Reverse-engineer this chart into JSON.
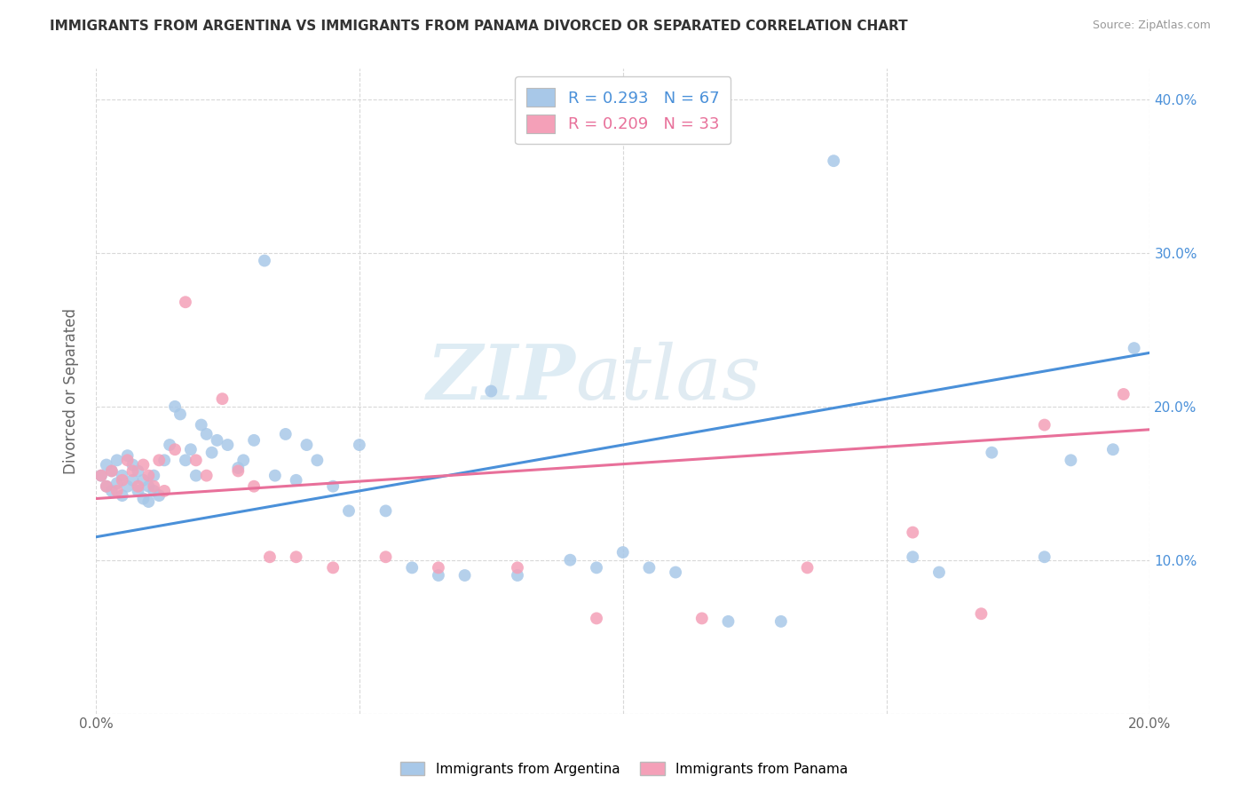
{
  "title": "IMMIGRANTS FROM ARGENTINA VS IMMIGRANTS FROM PANAMA DIVORCED OR SEPARATED CORRELATION CHART",
  "source": "Source: ZipAtlas.com",
  "ylabel": "Divorced or Separated",
  "xlim": [
    0.0,
    0.2
  ],
  "ylim": [
    0.0,
    0.42
  ],
  "xticks": [
    0.0,
    0.05,
    0.1,
    0.15,
    0.2
  ],
  "yticks": [
    0.0,
    0.1,
    0.2,
    0.3,
    0.4
  ],
  "xtick_labels": [
    "0.0%",
    "",
    "",
    "",
    "20.0%"
  ],
  "ytick_labels": [
    "",
    "10.0%",
    "20.0%",
    "30.0%",
    "40.0%"
  ],
  "right_ytick_labels": [
    "",
    "10.0%",
    "20.0%",
    "30.0%",
    "40.0%"
  ],
  "argentina_color": "#a8c8e8",
  "panama_color": "#f4a0b8",
  "argentina_line_color": "#4a90d9",
  "panama_line_color": "#e8709a",
  "R_argentina": 0.293,
  "N_argentina": 67,
  "R_panama": 0.209,
  "N_panama": 33,
  "legend_label_argentina": "Immigrants from Argentina",
  "legend_label_panama": "Immigrants from Panama",
  "background_color": "#ffffff",
  "watermark_zip": "ZIP",
  "watermark_atlas": "atlas",
  "argentina_x": [
    0.001,
    0.002,
    0.002,
    0.003,
    0.003,
    0.004,
    0.004,
    0.005,
    0.005,
    0.006,
    0.006,
    0.007,
    0.007,
    0.008,
    0.008,
    0.009,
    0.009,
    0.01,
    0.01,
    0.011,
    0.011,
    0.012,
    0.013,
    0.014,
    0.015,
    0.016,
    0.017,
    0.018,
    0.019,
    0.02,
    0.021,
    0.022,
    0.023,
    0.025,
    0.027,
    0.028,
    0.03,
    0.032,
    0.034,
    0.036,
    0.038,
    0.04,
    0.042,
    0.045,
    0.048,
    0.05,
    0.055,
    0.06,
    0.065,
    0.07,
    0.075,
    0.08,
    0.09,
    0.095,
    0.1,
    0.105,
    0.11,
    0.12,
    0.13,
    0.14,
    0.155,
    0.16,
    0.17,
    0.18,
    0.185,
    0.193,
    0.197
  ],
  "argentina_y": [
    0.155,
    0.148,
    0.162,
    0.145,
    0.158,
    0.15,
    0.165,
    0.142,
    0.155,
    0.148,
    0.168,
    0.152,
    0.162,
    0.145,
    0.158,
    0.14,
    0.152,
    0.138,
    0.148,
    0.145,
    0.155,
    0.142,
    0.165,
    0.175,
    0.2,
    0.195,
    0.165,
    0.172,
    0.155,
    0.188,
    0.182,
    0.17,
    0.178,
    0.175,
    0.16,
    0.165,
    0.178,
    0.295,
    0.155,
    0.182,
    0.152,
    0.175,
    0.165,
    0.148,
    0.132,
    0.175,
    0.132,
    0.095,
    0.09,
    0.09,
    0.21,
    0.09,
    0.1,
    0.095,
    0.105,
    0.095,
    0.092,
    0.06,
    0.06,
    0.36,
    0.102,
    0.092,
    0.17,
    0.102,
    0.165,
    0.172,
    0.238
  ],
  "panama_x": [
    0.001,
    0.002,
    0.003,
    0.004,
    0.005,
    0.006,
    0.007,
    0.008,
    0.009,
    0.01,
    0.011,
    0.012,
    0.013,
    0.015,
    0.017,
    0.019,
    0.021,
    0.024,
    0.027,
    0.03,
    0.033,
    0.038,
    0.045,
    0.055,
    0.065,
    0.08,
    0.095,
    0.115,
    0.135,
    0.155,
    0.168,
    0.18,
    0.195
  ],
  "panama_y": [
    0.155,
    0.148,
    0.158,
    0.145,
    0.152,
    0.165,
    0.158,
    0.148,
    0.162,
    0.155,
    0.148,
    0.165,
    0.145,
    0.172,
    0.268,
    0.165,
    0.155,
    0.205,
    0.158,
    0.148,
    0.102,
    0.102,
    0.095,
    0.102,
    0.095,
    0.095,
    0.062,
    0.062,
    0.095,
    0.118,
    0.065,
    0.188,
    0.208
  ]
}
